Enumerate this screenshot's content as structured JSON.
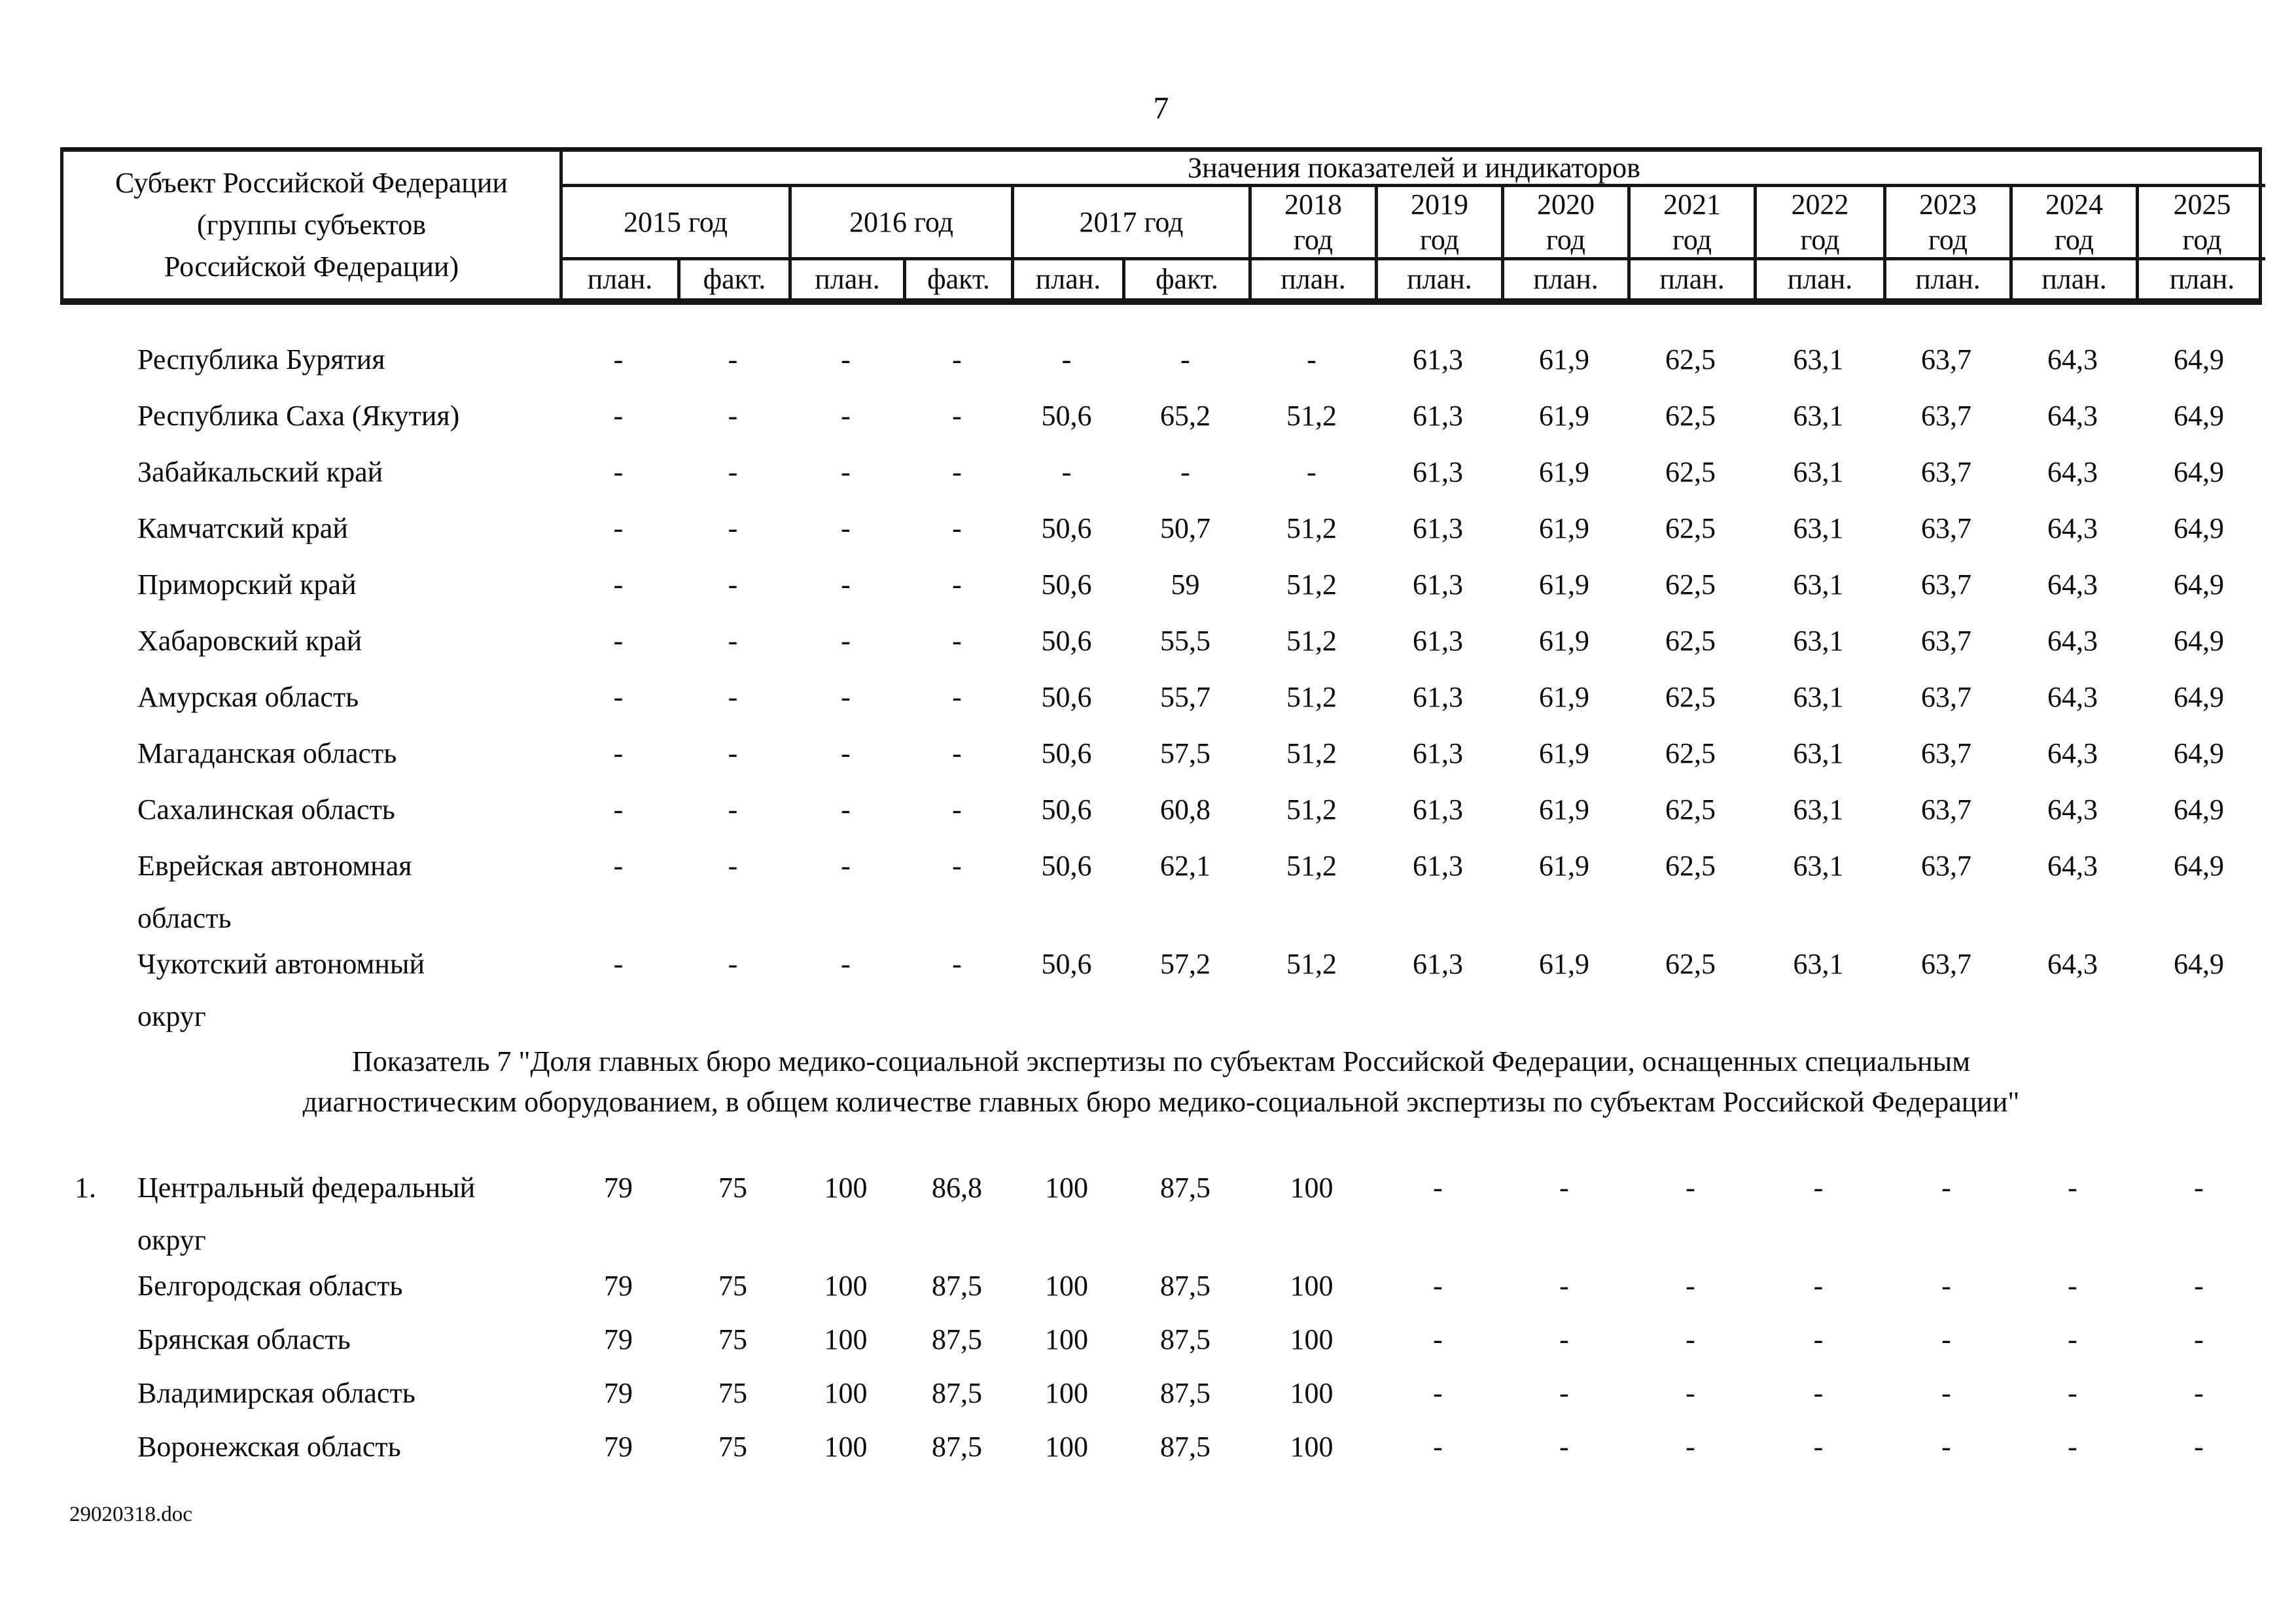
{
  "page": {
    "number": "7",
    "footer": "29020318.doc"
  },
  "table": {
    "region_header_lines": [
      "Субъект Российской Федерации",
      "(группы субъектов",
      "Российской Федерации)"
    ],
    "values_header": "Значения показателей и индикаторов",
    "year_groups": [
      {
        "label": "2015 год",
        "subs": [
          "план.",
          "факт."
        ]
      },
      {
        "label": "2016 год",
        "subs": [
          "план.",
          "факт."
        ]
      },
      {
        "label": "2017 год",
        "subs": [
          "план.",
          "факт."
        ]
      },
      {
        "label": "2018 год",
        "subs": [
          "план."
        ]
      },
      {
        "label": "2019 год",
        "subs": [
          "план."
        ]
      },
      {
        "label": "2020 год",
        "subs": [
          "план."
        ]
      },
      {
        "label": "2021 год",
        "subs": [
          "план."
        ]
      },
      {
        "label": "2022 год",
        "subs": [
          "план."
        ]
      },
      {
        "label": "2023 год",
        "subs": [
          "план."
        ]
      },
      {
        "label": "2024 год",
        "subs": [
          "план."
        ]
      },
      {
        "label": "2025 год",
        "subs": [
          "план."
        ]
      }
    ]
  },
  "far_east": {
    "rows": [
      {
        "num": "",
        "name": "Республика Бурятия",
        "two_line": false,
        "values": [
          "-",
          "-",
          "-",
          "-",
          "-",
          "-",
          "-",
          "61,3",
          "61,9",
          "62,5",
          "63,1",
          "63,7",
          "64,3",
          "64,9"
        ]
      },
      {
        "num": "",
        "name": "Республика Саха (Якутия)",
        "two_line": false,
        "values": [
          "-",
          "-",
          "-",
          "-",
          "50,6",
          "65,2",
          "51,2",
          "61,3",
          "61,9",
          "62,5",
          "63,1",
          "63,7",
          "64,3",
          "64,9"
        ]
      },
      {
        "num": "",
        "name": "Забайкальский край",
        "two_line": false,
        "values": [
          "-",
          "-",
          "-",
          "-",
          "-",
          "-",
          "-",
          "61,3",
          "61,9",
          "62,5",
          "63,1",
          "63,7",
          "64,3",
          "64,9"
        ]
      },
      {
        "num": "",
        "name": "Камчатский край",
        "two_line": false,
        "values": [
          "-",
          "-",
          "-",
          "-",
          "50,6",
          "50,7",
          "51,2",
          "61,3",
          "61,9",
          "62,5",
          "63,1",
          "63,7",
          "64,3",
          "64,9"
        ]
      },
      {
        "num": "",
        "name": "Приморский край",
        "two_line": false,
        "values": [
          "-",
          "-",
          "-",
          "-",
          "50,6",
          "59",
          "51,2",
          "61,3",
          "61,9",
          "62,5",
          "63,1",
          "63,7",
          "64,3",
          "64,9"
        ]
      },
      {
        "num": "",
        "name": "Хабаровский край",
        "two_line": false,
        "values": [
          "-",
          "-",
          "-",
          "-",
          "50,6",
          "55,5",
          "51,2",
          "61,3",
          "61,9",
          "62,5",
          "63,1",
          "63,7",
          "64,3",
          "64,9"
        ]
      },
      {
        "num": "",
        "name": "Амурская область",
        "two_line": false,
        "values": [
          "-",
          "-",
          "-",
          "-",
          "50,6",
          "55,7",
          "51,2",
          "61,3",
          "61,9",
          "62,5",
          "63,1",
          "63,7",
          "64,3",
          "64,9"
        ]
      },
      {
        "num": "",
        "name": "Магаданская область",
        "two_line": false,
        "values": [
          "-",
          "-",
          "-",
          "-",
          "50,6",
          "57,5",
          "51,2",
          "61,3",
          "61,9",
          "62,5",
          "63,1",
          "63,7",
          "64,3",
          "64,9"
        ]
      },
      {
        "num": "",
        "name": "Сахалинская область",
        "two_line": false,
        "values": [
          "-",
          "-",
          "-",
          "-",
          "50,6",
          "60,8",
          "51,2",
          "61,3",
          "61,9",
          "62,5",
          "63,1",
          "63,7",
          "64,3",
          "64,9"
        ]
      },
      {
        "num": "",
        "name": "Еврейская автономная область",
        "two_line": true,
        "values": [
          "-",
          "-",
          "-",
          "-",
          "50,6",
          "62,1",
          "51,2",
          "61,3",
          "61,9",
          "62,5",
          "63,1",
          "63,7",
          "64,3",
          "64,9"
        ]
      },
      {
        "num": "",
        "name": "Чукотский автономный округ",
        "two_line": true,
        "values": [
          "-",
          "-",
          "-",
          "-",
          "50,6",
          "57,2",
          "51,2",
          "61,3",
          "61,9",
          "62,5",
          "63,1",
          "63,7",
          "64,3",
          "64,9"
        ]
      }
    ]
  },
  "indicator7": {
    "heading_lines": [
      "Показатель 7 \"Доля главных бюро медико-социальной экспертизы по субъектам Российской Федерации, оснащенных специальным",
      "диагностическим оборудованием, в общем количестве главных бюро медико-социальной экспертизы по субъектам Российской Федерации\""
    ],
    "rows": [
      {
        "num": "1.",
        "name": "Центральный федеральный округ",
        "two_line": true,
        "values": [
          "79",
          "75",
          "100",
          "86,8",
          "100",
          "87,5",
          "100",
          "-",
          "-",
          "-",
          "-",
          "-",
          "-",
          "-"
        ]
      },
      {
        "num": "",
        "name": "Белгородская область",
        "two_line": false,
        "values": [
          "79",
          "75",
          "100",
          "87,5",
          "100",
          "87,5",
          "100",
          "-",
          "-",
          "-",
          "-",
          "-",
          "-",
          "-"
        ]
      },
      {
        "num": "",
        "name": "Брянская область",
        "two_line": false,
        "values": [
          "79",
          "75",
          "100",
          "87,5",
          "100",
          "87,5",
          "100",
          "-",
          "-",
          "-",
          "-",
          "-",
          "-",
          "-"
        ]
      },
      {
        "num": "",
        "name": "Владимирская область",
        "two_line": false,
        "values": [
          "79",
          "75",
          "100",
          "87,5",
          "100",
          "87,5",
          "100",
          "-",
          "-",
          "-",
          "-",
          "-",
          "-",
          "-"
        ]
      },
      {
        "num": "",
        "name": "Воронежская область",
        "two_line": false,
        "values": [
          "79",
          "75",
          "100",
          "87,5",
          "100",
          "87,5",
          "100",
          "-",
          "-",
          "-",
          "-",
          "-",
          "-",
          "-"
        ]
      }
    ]
  }
}
